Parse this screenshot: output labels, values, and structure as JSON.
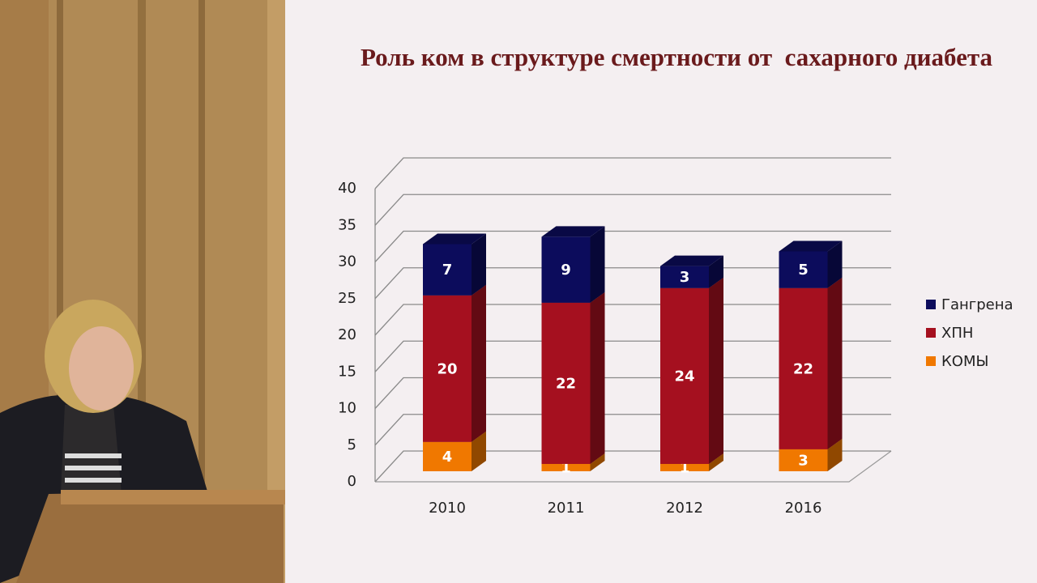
{
  "chart_data": {
    "type": "bar3d_stacked",
    "title": "Роль ком в структуре смертности от  сахарного диабета",
    "categories": [
      "2010",
      "2011",
      "2012",
      "2016"
    ],
    "series": [
      {
        "name": "Гангрена",
        "color": "#0c0c5c",
        "values": [
          7,
          9,
          3,
          5
        ]
      },
      {
        "name": "ХПН",
        "color": "#a5101f",
        "values": [
          20,
          22,
          24,
          22
        ]
      },
      {
        "name": "КОМЫ",
        "color": "#f07800",
        "values": [
          4,
          1,
          1,
          3
        ]
      }
    ],
    "ylim": [
      0,
      40
    ],
    "yticks": [
      0,
      5,
      10,
      15,
      20,
      25,
      30,
      35,
      40
    ],
    "grid": true,
    "legend": "right"
  }
}
